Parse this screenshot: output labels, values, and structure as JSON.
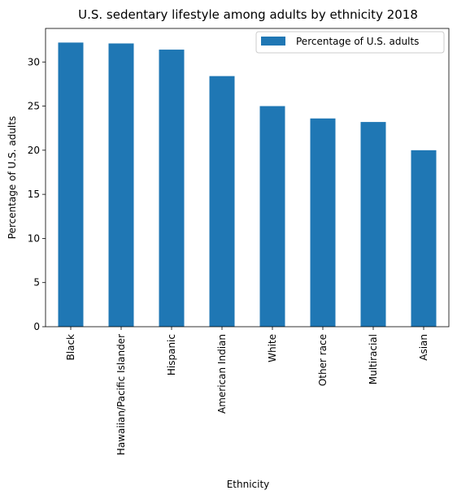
{
  "chart_data": {
    "type": "bar",
    "title": "U.S. sedentary lifestyle among adults by ethnicity 2018",
    "xlabel": "Ethnicity",
    "ylabel": "Percentage of U.S. adults",
    "categories": [
      "Black",
      "Hawaiian/Pacific Islander",
      "Hispanic",
      "American Indian",
      "White",
      "Other race",
      "Multiracial",
      "Asian"
    ],
    "series": [
      {
        "name": "Percentage of U.S. adults",
        "values": [
          32.2,
          32.1,
          31.4,
          28.4,
          25.0,
          23.6,
          23.2,
          20.0
        ],
        "color": "#1f77b4"
      }
    ],
    "ylim": [
      0,
      33.8
    ],
    "yticks": [
      0,
      5,
      10,
      15,
      20,
      25,
      30
    ],
    "grid": false,
    "legend_position": "top-right"
  }
}
